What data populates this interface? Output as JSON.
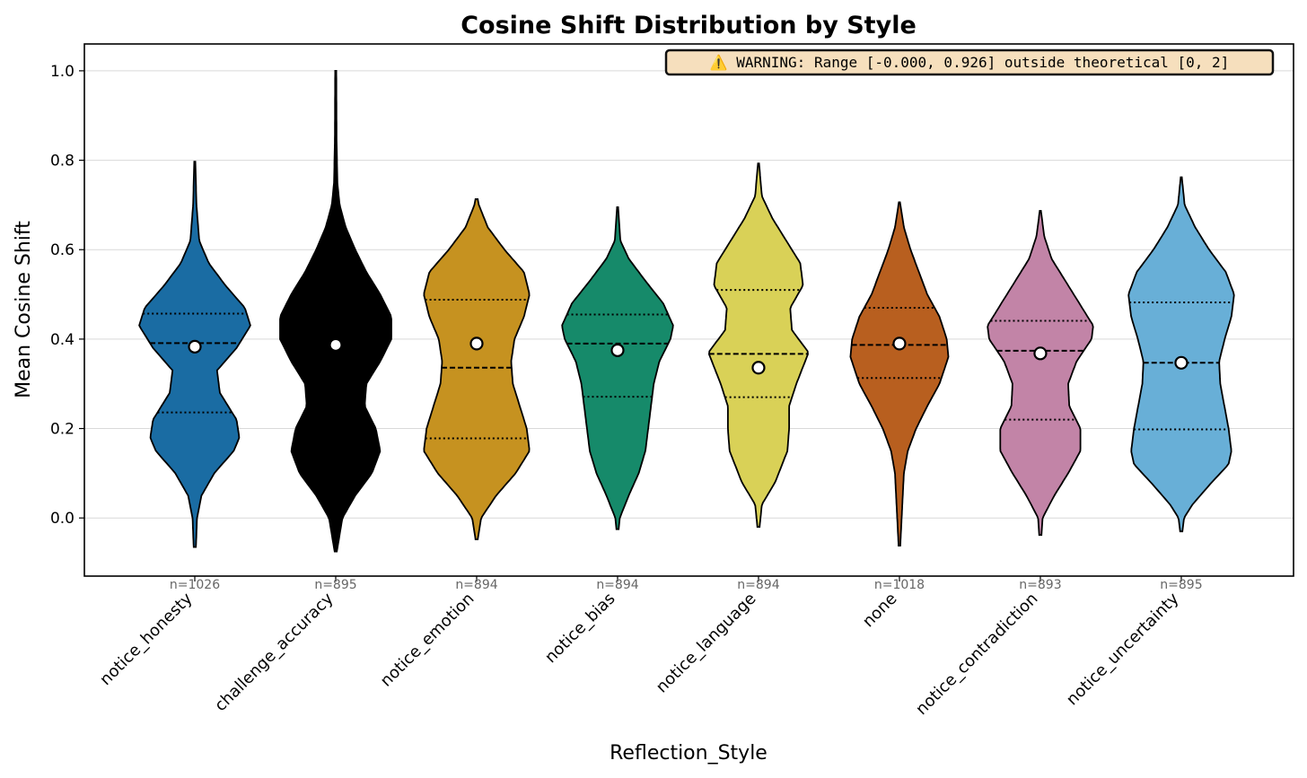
{
  "chart_data": {
    "type": "violin",
    "title": "Cosine Shift Distribution by Style",
    "xlabel": "Reflection_Style",
    "ylabel": "Mean Cosine Shift",
    "ylim": [
      -0.13,
      1.06
    ],
    "yticks": [
      "0.0",
      "0.2",
      "0.4",
      "0.6",
      "0.8",
      "1.0"
    ],
    "grid": "horizontal",
    "annotation": "⚠️ WARNING: Range [-0.000, 0.926] outside theoretical [0, 2]",
    "series": [
      {
        "category": "notice_honesty",
        "n_label": "n=1026",
        "color": "#1a6ca3",
        "mean": 0.383,
        "q1": 0.236,
        "median": 0.391,
        "q3": 0.457,
        "min": -0.065,
        "max": 0.797,
        "profile": [
          [
            -0.065,
            0.02
          ],
          [
            0.0,
            0.04
          ],
          [
            0.05,
            0.12
          ],
          [
            0.1,
            0.35
          ],
          [
            0.15,
            0.7
          ],
          [
            0.18,
            0.8
          ],
          [
            0.22,
            0.75
          ],
          [
            0.28,
            0.45
          ],
          [
            0.33,
            0.4
          ],
          [
            0.38,
            0.75
          ],
          [
            0.43,
            1.0
          ],
          [
            0.47,
            0.9
          ],
          [
            0.52,
            0.55
          ],
          [
            0.57,
            0.25
          ],
          [
            0.62,
            0.08
          ],
          [
            0.7,
            0.03
          ],
          [
            0.797,
            0.01
          ]
        ]
      },
      {
        "category": "challenge_accuracy",
        "n_label": "n=895",
        "color": "#000000",
        "mean": 0.387,
        "q1": null,
        "median": null,
        "q3": null,
        "min": -0.075,
        "max": 1.0,
        "profile": [
          [
            -0.075,
            0.02
          ],
          [
            0.0,
            0.12
          ],
          [
            0.05,
            0.35
          ],
          [
            0.1,
            0.65
          ],
          [
            0.15,
            0.8
          ],
          [
            0.2,
            0.72
          ],
          [
            0.25,
            0.52
          ],
          [
            0.3,
            0.55
          ],
          [
            0.35,
            0.8
          ],
          [
            0.4,
            1.0
          ],
          [
            0.45,
            1.0
          ],
          [
            0.5,
            0.8
          ],
          [
            0.55,
            0.55
          ],
          [
            0.6,
            0.35
          ],
          [
            0.65,
            0.18
          ],
          [
            0.7,
            0.07
          ],
          [
            0.75,
            0.03
          ],
          [
            0.85,
            0.015
          ],
          [
            1.0,
            0.01
          ]
        ]
      },
      {
        "category": "notice_emotion",
        "n_label": "n=894",
        "color": "#c69220",
        "mean": 0.39,
        "q1": 0.178,
        "median": 0.336,
        "q3": 0.488,
        "min": -0.048,
        "max": 0.713,
        "profile": [
          [
            -0.048,
            0.02
          ],
          [
            0.0,
            0.08
          ],
          [
            0.05,
            0.35
          ],
          [
            0.1,
            0.7
          ],
          [
            0.15,
            0.95
          ],
          [
            0.2,
            0.9
          ],
          [
            0.3,
            0.65
          ],
          [
            0.35,
            0.62
          ],
          [
            0.4,
            0.68
          ],
          [
            0.45,
            0.85
          ],
          [
            0.5,
            0.95
          ],
          [
            0.55,
            0.85
          ],
          [
            0.6,
            0.5
          ],
          [
            0.65,
            0.2
          ],
          [
            0.7,
            0.04
          ],
          [
            0.713,
            0.02
          ]
        ]
      },
      {
        "category": "notice_bias",
        "n_label": "n=894",
        "color": "#168a6a",
        "mean": 0.375,
        "q1": 0.271,
        "median": 0.39,
        "q3": 0.455,
        "min": -0.025,
        "max": 0.695,
        "profile": [
          [
            -0.025,
            0.02
          ],
          [
            0.0,
            0.04
          ],
          [
            0.05,
            0.2
          ],
          [
            0.1,
            0.38
          ],
          [
            0.15,
            0.5
          ],
          [
            0.2,
            0.55
          ],
          [
            0.25,
            0.6
          ],
          [
            0.3,
            0.65
          ],
          [
            0.35,
            0.75
          ],
          [
            0.4,
            0.95
          ],
          [
            0.43,
            1.0
          ],
          [
            0.48,
            0.82
          ],
          [
            0.53,
            0.5
          ],
          [
            0.58,
            0.2
          ],
          [
            0.62,
            0.05
          ],
          [
            0.695,
            0.01
          ]
        ]
      },
      {
        "category": "notice_language",
        "n_label": "n=894",
        "color": "#d9d157",
        "mean": 0.336,
        "q1": 0.27,
        "median": 0.367,
        "q3": 0.51,
        "min": -0.02,
        "max": 0.793,
        "profile": [
          [
            -0.02,
            0.02
          ],
          [
            0.03,
            0.06
          ],
          [
            0.08,
            0.3
          ],
          [
            0.15,
            0.52
          ],
          [
            0.2,
            0.55
          ],
          [
            0.25,
            0.55
          ],
          [
            0.3,
            0.68
          ],
          [
            0.37,
            0.9
          ],
          [
            0.42,
            0.6
          ],
          [
            0.47,
            0.57
          ],
          [
            0.52,
            0.8
          ],
          [
            0.57,
            0.75
          ],
          [
            0.62,
            0.5
          ],
          [
            0.67,
            0.25
          ],
          [
            0.72,
            0.06
          ],
          [
            0.793,
            0.01
          ]
        ]
      },
      {
        "category": "none",
        "n_label": "n=1018",
        "color": "#b85f1f",
        "mean": 0.39,
        "q1": 0.313,
        "median": 0.387,
        "q3": 0.47,
        "min": -0.062,
        "max": 0.706,
        "profile": [
          [
            -0.062,
            0.015
          ],
          [
            0.0,
            0.04
          ],
          [
            0.1,
            0.08
          ],
          [
            0.15,
            0.15
          ],
          [
            0.2,
            0.3
          ],
          [
            0.25,
            0.5
          ],
          [
            0.3,
            0.72
          ],
          [
            0.36,
            0.88
          ],
          [
            0.4,
            0.85
          ],
          [
            0.45,
            0.72
          ],
          [
            0.5,
            0.5
          ],
          [
            0.55,
            0.35
          ],
          [
            0.6,
            0.2
          ],
          [
            0.65,
            0.08
          ],
          [
            0.706,
            0.01
          ]
        ]
      },
      {
        "category": "notice_contradiction",
        "n_label": "n=893",
        "color": "#c284a7",
        "mean": 0.368,
        "q1": 0.22,
        "median": 0.374,
        "q3": 0.441,
        "min": -0.038,
        "max": 0.687,
        "profile": [
          [
            -0.038,
            0.02
          ],
          [
            0.0,
            0.04
          ],
          [
            0.05,
            0.25
          ],
          [
            0.1,
            0.5
          ],
          [
            0.15,
            0.72
          ],
          [
            0.2,
            0.72
          ],
          [
            0.25,
            0.52
          ],
          [
            0.3,
            0.5
          ],
          [
            0.35,
            0.65
          ],
          [
            0.4,
            0.92
          ],
          [
            0.43,
            0.95
          ],
          [
            0.48,
            0.7
          ],
          [
            0.53,
            0.45
          ],
          [
            0.58,
            0.2
          ],
          [
            0.63,
            0.07
          ],
          [
            0.687,
            0.01
          ]
        ]
      },
      {
        "category": "notice_uncertainty",
        "n_label": "n=895",
        "color": "#68afd7",
        "mean": 0.347,
        "q1": 0.198,
        "median": 0.347,
        "q3": 0.482,
        "min": -0.03,
        "max": 0.762,
        "profile": [
          [
            -0.03,
            0.02
          ],
          [
            0.0,
            0.05
          ],
          [
            0.03,
            0.2
          ],
          [
            0.08,
            0.55
          ],
          [
            0.12,
            0.85
          ],
          [
            0.15,
            0.9
          ],
          [
            0.2,
            0.85
          ],
          [
            0.3,
            0.7
          ],
          [
            0.35,
            0.68
          ],
          [
            0.4,
            0.78
          ],
          [
            0.45,
            0.9
          ],
          [
            0.5,
            0.95
          ],
          [
            0.55,
            0.8
          ],
          [
            0.6,
            0.5
          ],
          [
            0.65,
            0.25
          ],
          [
            0.7,
            0.06
          ],
          [
            0.762,
            0.01
          ]
        ]
      }
    ]
  }
}
